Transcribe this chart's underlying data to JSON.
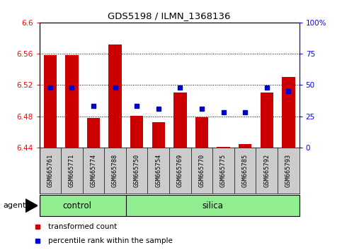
{
  "title": "GDS5198 / ILMN_1368136",
  "samples": [
    "GSM665761",
    "GSM665771",
    "GSM665774",
    "GSM665788",
    "GSM665750",
    "GSM665754",
    "GSM665769",
    "GSM665770",
    "GSM665775",
    "GSM665785",
    "GSM665792",
    "GSM665793"
  ],
  "groups": [
    "control",
    "control",
    "control",
    "control",
    "silica",
    "silica",
    "silica",
    "silica",
    "silica",
    "silica",
    "silica",
    "silica"
  ],
  "bar_values": [
    6.558,
    6.558,
    6.478,
    6.572,
    6.481,
    6.472,
    6.51,
    6.479,
    6.441,
    6.444,
    6.51,
    6.53
  ],
  "percentile_values": [
    48,
    48,
    33,
    48,
    33,
    31,
    48,
    31,
    28,
    28,
    48,
    45
  ],
  "y_min": 6.44,
  "y_max": 6.6,
  "y_ticks": [
    6.44,
    6.48,
    6.52,
    6.56,
    6.6
  ],
  "right_ticks": [
    0,
    25,
    50,
    75,
    100
  ],
  "right_tick_labels": [
    "0",
    "25",
    "50",
    "75",
    "100%"
  ],
  "bar_color": "#cc0000",
  "dot_color": "#0000cc",
  "group_color": "#90ee90",
  "label_bg_color": "#cccccc",
  "plot_bg": "#ffffff",
  "legend_bar_label": "transformed count",
  "legend_dot_label": "percentile rank within the sample",
  "agent_label": "agent",
  "bar_width": 0.6,
  "ctrl_count": 4,
  "n_samples": 12
}
